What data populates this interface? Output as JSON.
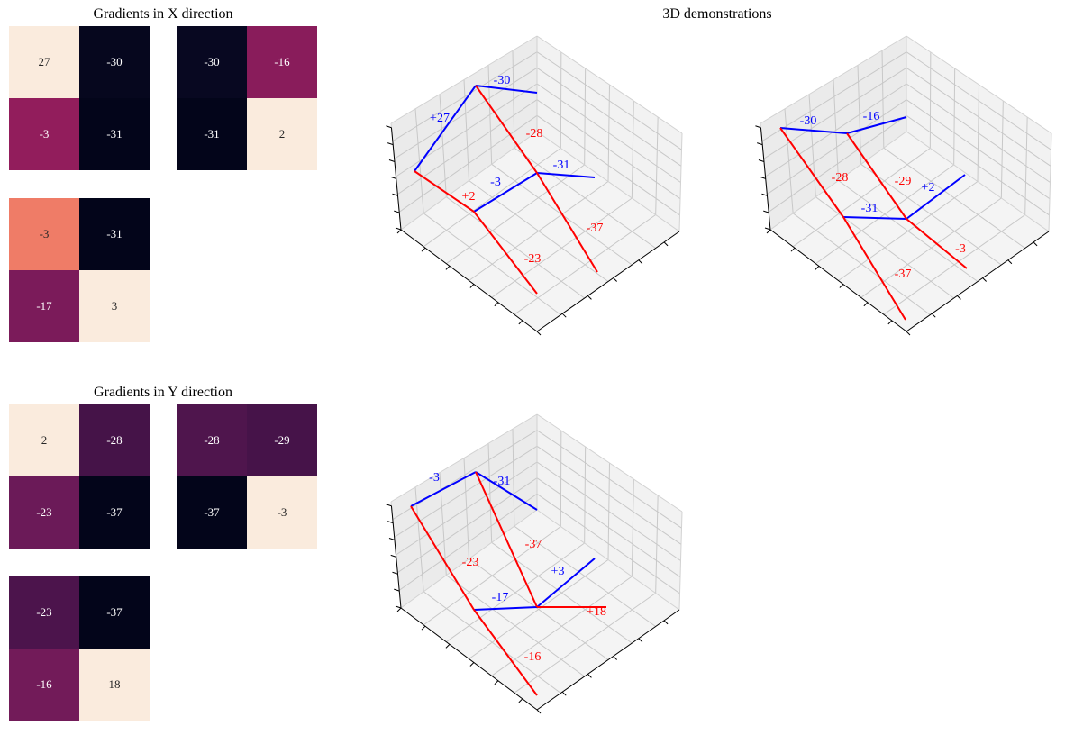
{
  "titles": {
    "x_gradients": "Gradients in X direction",
    "y_gradients": "Gradients in Y direction",
    "demos": "3D demonstrations"
  },
  "colors": {
    "blue_edge": "#0000ff",
    "red_edge": "#ff0000",
    "heatmap_palette": "rocket"
  },
  "chart_data": [
    {
      "type": "heatmap",
      "group": "Gradients in X direction",
      "matrices": [
        {
          "values": [
            [
              27,
              -30
            ],
            [
              -3,
              -31
            ]
          ]
        },
        {
          "values": [
            [
              -30,
              -16
            ],
            [
              -31,
              2
            ]
          ]
        },
        {
          "values": [
            [
              -3,
              -31
            ],
            [
              -17,
              3
            ]
          ]
        }
      ]
    },
    {
      "type": "heatmap",
      "group": "Gradients in Y direction",
      "matrices": [
        {
          "values": [
            [
              2,
              -28
            ],
            [
              -23,
              -37
            ]
          ]
        },
        {
          "values": [
            [
              -28,
              -29
            ],
            [
              -37,
              -3
            ]
          ]
        },
        {
          "values": [
            [
              -23,
              -37
            ],
            [
              -16,
              18
            ]
          ]
        }
      ]
    },
    {
      "type": "line",
      "group": "3D demonstrations",
      "panels": [
        {
          "blue_labels": [
            "-30",
            "+27",
            "-3",
            "-31"
          ],
          "red_labels": [
            "-28",
            "+2",
            "-37",
            "-23"
          ]
        },
        {
          "blue_labels": [
            "-30",
            "-16",
            "+2",
            "-31"
          ],
          "red_labels": [
            "-28",
            "-29",
            "-3",
            "-37"
          ]
        },
        {
          "blue_labels": [
            "-3",
            "-31",
            "+3",
            "-17"
          ],
          "red_labels": [
            "-23",
            "-37",
            "+18",
            "-16"
          ]
        }
      ]
    }
  ]
}
